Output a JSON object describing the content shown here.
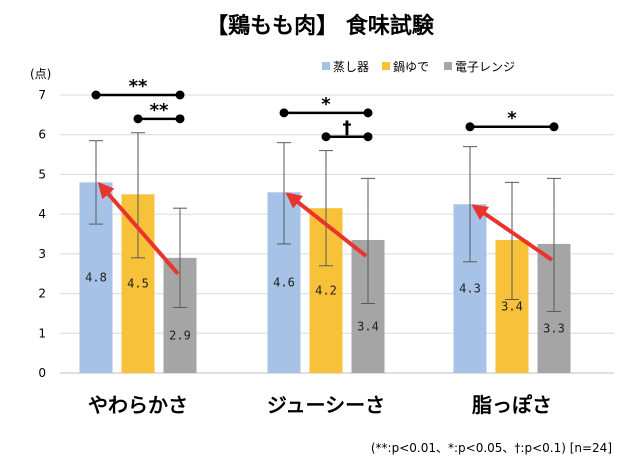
{
  "chart_data": {
    "type": "bar",
    "title": "【鶏もも肉】 食味試験",
    "ylabel": "(点)",
    "ylim": [
      0,
      7
    ],
    "yticks": [
      "0",
      "1",
      "2",
      "3",
      "4",
      "5",
      "6",
      "7"
    ],
    "grid": true,
    "legend_position": "top-right",
    "categories": [
      "やわらかさ",
      "ジューシーさ",
      "脂っぽさ"
    ],
    "series": [
      {
        "name": "蒸し器",
        "color": "#a6c2e6",
        "values": [
          4.8,
          4.55,
          4.25
        ],
        "labels": [
          "4.8",
          "4.6",
          "4.3"
        ],
        "error_low": [
          3.75,
          3.25,
          2.8
        ],
        "error_high": [
          5.85,
          5.8,
          5.7
        ]
      },
      {
        "name": "鍋ゆで",
        "color": "#f7c23a",
        "values": [
          4.5,
          4.15,
          3.35
        ],
        "labels": [
          "4.5",
          "4.2",
          "3.4"
        ],
        "error_low": [
          2.9,
          2.7,
          1.85
        ],
        "error_high": [
          6.05,
          5.6,
          4.8
        ]
      },
      {
        "name": "電子レンジ",
        "color": "#a5a5a5",
        "values": [
          2.9,
          3.35,
          3.25
        ],
        "labels": [
          "2.9",
          "3.4",
          "3.3"
        ],
        "error_low": [
          1.65,
          1.75,
          1.55
        ],
        "error_high": [
          4.15,
          4.9,
          4.9
        ]
      }
    ],
    "significance": [
      {
        "category": 0,
        "from": 0,
        "to": 2,
        "y": 7.0,
        "label": "**"
      },
      {
        "category": 0,
        "from": 1,
        "to": 2,
        "y": 6.4,
        "label": "**"
      },
      {
        "category": 1,
        "from": 0,
        "to": 2,
        "y": 6.55,
        "label": "*"
      },
      {
        "category": 1,
        "from": 1,
        "to": 2,
        "y": 5.95,
        "label": "†"
      },
      {
        "category": 2,
        "from": 0,
        "to": 2,
        "y": 6.2,
        "label": "*"
      }
    ],
    "arrows": [
      {
        "category": 0,
        "from_series": 2,
        "to_series": 0
      },
      {
        "category": 1,
        "from_series": 2,
        "to_series": 0
      },
      {
        "category": 2,
        "from_series": 2,
        "to_series": 0
      }
    ],
    "footnote": "(**:p<0.01、*:p<0.05、†:p<0.1) [n=24]"
  },
  "colors": {
    "arrow": "#e8342c",
    "grid": "#d9d9d9",
    "errorbar": "#595959"
  }
}
